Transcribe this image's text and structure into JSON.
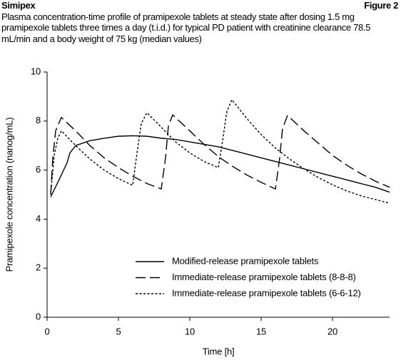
{
  "chart_data": {
    "type": "line",
    "title": "Simipex",
    "figure_label": "Figure 2",
    "subtitle": "Plasma concentration-time profile of pramipexole tablets at steady state after dosing 1.5 mg pramipexole tablets three times a day (t.i.d.) for typical PD patient with creatinine clearance 78.5 mL/min and a body weight of 75 kg (median values)",
    "x_label": "Time [h]",
    "y_label": "Pramipexole concentration (nanog/mL)",
    "xlim": [
      0,
      24
    ],
    "ylim": [
      0,
      10
    ],
    "xticks": [
      0,
      5,
      10,
      15,
      20
    ],
    "yticks": [
      0,
      2,
      4,
      6,
      8,
      10
    ],
    "grid": false,
    "legend": "lower right",
    "series": [
      {
        "name": "Modified-release pramipexole tablets",
        "color": "#000000",
        "line_style": "solid",
        "x": [
          0.25,
          0.5,
          1,
          1.4,
          1.6,
          2,
          3,
          4,
          5,
          6,
          7,
          8,
          9,
          10,
          11,
          12,
          13,
          14,
          15,
          16,
          17,
          18,
          19,
          20,
          21,
          22,
          23,
          24
        ],
        "values": [
          4.9,
          5.2,
          5.8,
          6.3,
          6.7,
          7.0,
          7.2,
          7.3,
          7.38,
          7.4,
          7.38,
          7.3,
          7.25,
          7.15,
          7.05,
          6.95,
          6.8,
          6.65,
          6.5,
          6.35,
          6.2,
          6.05,
          5.9,
          5.75,
          5.6,
          5.45,
          5.3,
          5.1
        ]
      },
      {
        "name": "Immediate-release pramipexole tablets (8-8-8)",
        "color": "#000000",
        "line_style": "dashed",
        "x": [
          0.25,
          0.4,
          0.6,
          1.0,
          2,
          3,
          4,
          5,
          6,
          7,
          8,
          8.3,
          8.5,
          8.8,
          10,
          11,
          12,
          13,
          14,
          15,
          16,
          16.3,
          16.5,
          16.85,
          18,
          19,
          20,
          21,
          22,
          23,
          24
        ],
        "values": [
          5.0,
          6.5,
          7.6,
          8.15,
          7.6,
          7.0,
          6.5,
          6.1,
          5.75,
          5.45,
          5.23,
          6.5,
          7.8,
          8.25,
          7.6,
          7.05,
          6.55,
          6.15,
          5.8,
          5.5,
          5.23,
          6.5,
          7.7,
          8.23,
          7.6,
          7.1,
          6.6,
          6.2,
          5.85,
          5.55,
          5.3
        ]
      },
      {
        "name": "Immediate-release pramipexole tablets (6-6-12)",
        "color": "#000000",
        "line_style": "dotted",
        "x": [
          0.25,
          0.5,
          0.75,
          1.0,
          2,
          3,
          4,
          5,
          6,
          6.3,
          6.6,
          7.0,
          8,
          9,
          10,
          11,
          12,
          12.3,
          12.6,
          12.95,
          14,
          15,
          16,
          17,
          18,
          19,
          20,
          21,
          22,
          23,
          24
        ],
        "values": [
          5.0,
          6.6,
          7.3,
          7.6,
          7.0,
          6.45,
          6.0,
          5.65,
          5.38,
          6.7,
          7.9,
          8.34,
          7.75,
          7.15,
          6.7,
          6.35,
          6.1,
          7.2,
          8.4,
          8.87,
          8.1,
          7.45,
          6.9,
          6.45,
          6.05,
          5.7,
          5.4,
          5.15,
          4.95,
          4.8,
          4.65
        ]
      }
    ]
  }
}
